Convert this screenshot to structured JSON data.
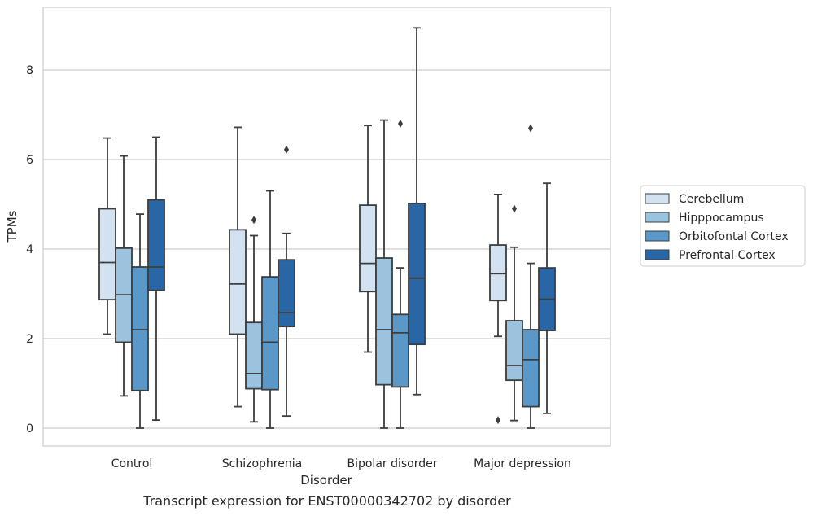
{
  "caption": "Transcript expression for ENST00000342702 by disorder",
  "chart_data": {
    "type": "box",
    "xlabel": "Disorder",
    "ylabel": "TPMs",
    "ylim": [
      -0.4,
      9.4
    ],
    "yticks": [
      0,
      2,
      4,
      6,
      8
    ],
    "grid": "horizontal",
    "legend_placement": "right",
    "categories": [
      "Control",
      "Schizophrenia",
      "Bipolar disorder",
      "Major depression"
    ],
    "series": [
      {
        "name": "Cerebellum",
        "color": "#d2e2f1",
        "boxes": [
          {
            "whisker_low": 2.1,
            "q1": 2.87,
            "median": 3.7,
            "q3": 4.9,
            "whisker_high": 6.48,
            "outliers": []
          },
          {
            "whisker_low": 0.48,
            "q1": 2.1,
            "median": 3.22,
            "q3": 4.43,
            "whisker_high": 6.72,
            "outliers": []
          },
          {
            "whisker_low": 1.7,
            "q1": 3.05,
            "median": 3.68,
            "q3": 4.98,
            "whisker_high": 6.76,
            "outliers": []
          },
          {
            "whisker_low": 2.05,
            "q1": 2.85,
            "median": 3.45,
            "q3": 4.09,
            "whisker_high": 5.22,
            "outliers": [
              0.18
            ]
          }
        ]
      },
      {
        "name": "Hipppocampus",
        "color": "#99c3de",
        "boxes": [
          {
            "whisker_low": 0.72,
            "q1": 1.92,
            "median": 2.98,
            "q3": 4.02,
            "whisker_high": 6.08,
            "outliers": []
          },
          {
            "whisker_low": 0.14,
            "q1": 0.88,
            "median": 1.22,
            "q3": 2.36,
            "whisker_high": 4.3,
            "outliers": [
              4.65
            ]
          },
          {
            "whisker_low": 0.0,
            "q1": 0.97,
            "median": 2.2,
            "q3": 3.8,
            "whisker_high": 6.88,
            "outliers": []
          },
          {
            "whisker_low": 0.17,
            "q1": 1.07,
            "median": 1.4,
            "q3": 2.4,
            "whisker_high": 4.04,
            "outliers": [
              4.9
            ]
          }
        ]
      },
      {
        "name": "Orbitofontal Cortex",
        "color": "#5998c8",
        "boxes": [
          {
            "whisker_low": 0.0,
            "q1": 0.84,
            "median": 2.2,
            "q3": 3.6,
            "whisker_high": 4.78,
            "outliers": []
          },
          {
            "whisker_low": 0.0,
            "q1": 0.86,
            "median": 1.92,
            "q3": 3.38,
            "whisker_high": 5.3,
            "outliers": []
          },
          {
            "whisker_low": 0.0,
            "q1": 0.92,
            "median": 2.13,
            "q3": 2.54,
            "whisker_high": 3.58,
            "outliers": [
              6.8
            ]
          },
          {
            "whisker_low": 0.0,
            "q1": 0.48,
            "median": 1.53,
            "q3": 2.2,
            "whisker_high": 3.68,
            "outliers": [
              6.7
            ]
          }
        ]
      },
      {
        "name": "Prefrontal Cortex",
        "color": "#2866a5",
        "boxes": [
          {
            "whisker_low": 0.18,
            "q1": 3.08,
            "median": 3.6,
            "q3": 5.1,
            "whisker_high": 6.5,
            "outliers": []
          },
          {
            "whisker_low": 0.27,
            "q1": 2.27,
            "median": 2.58,
            "q3": 3.76,
            "whisker_high": 4.35,
            "outliers": [
              6.22
            ]
          },
          {
            "whisker_low": 0.75,
            "q1": 1.87,
            "median": 3.35,
            "q3": 5.02,
            "whisker_high": 8.94,
            "outliers": []
          },
          {
            "whisker_low": 0.33,
            "q1": 2.18,
            "median": 2.88,
            "q3": 3.58,
            "whisker_high": 5.47,
            "outliers": []
          }
        ]
      }
    ]
  }
}
